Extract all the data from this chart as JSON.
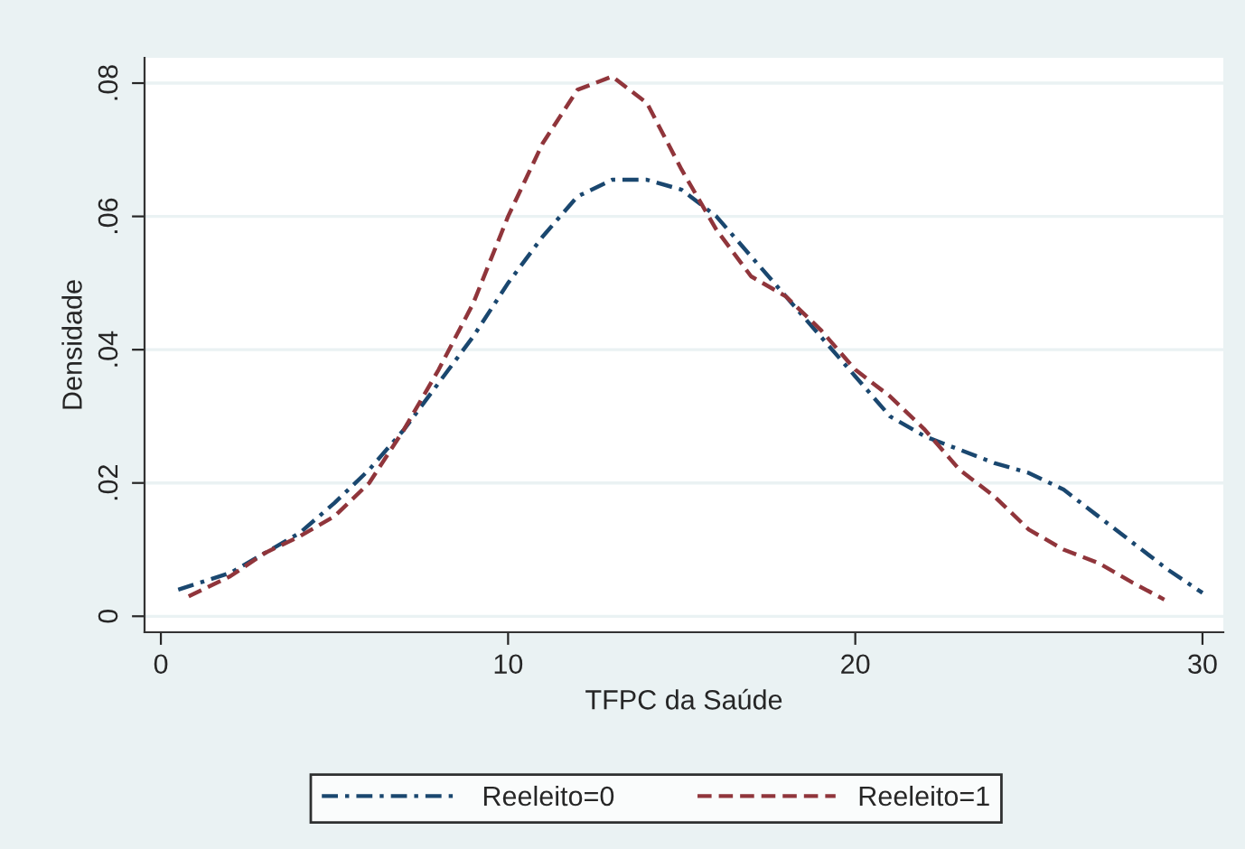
{
  "chart_data": {
    "type": "line",
    "xlabel": "TFPC da Saúde",
    "ylabel": "Densidade",
    "xlim": [
      -0.47,
      30.6
    ],
    "ylim": [
      -0.0024,
      0.0838
    ],
    "xticks": [
      0,
      10,
      20,
      30
    ],
    "yticks": [
      {
        "value": 0,
        "label": "0"
      },
      {
        "value": 0.02,
        "label": ".02"
      },
      {
        "value": 0.04,
        "label": ".04"
      },
      {
        "value": 0.06,
        "label": ".06"
      },
      {
        "value": 0.08,
        "label": ".08"
      }
    ],
    "grid": "y",
    "legend": "bottom",
    "series": [
      {
        "name": "Reeleito=0",
        "color": "#1a476f",
        "line_style": "dashdot",
        "x": [
          0.5,
          2,
          3,
          4,
          5,
          6,
          7,
          8,
          9,
          10,
          11,
          12,
          13,
          14,
          15,
          16,
          17,
          18,
          19,
          20,
          21,
          22,
          23,
          24,
          25,
          26,
          27,
          28,
          29,
          30
        ],
        "values": [
          0.004,
          0.0065,
          0.0095,
          0.0125,
          0.017,
          0.022,
          0.028,
          0.035,
          0.042,
          0.05,
          0.057,
          0.063,
          0.0655,
          0.0655,
          0.064,
          0.06,
          0.054,
          0.048,
          0.042,
          0.036,
          0.03,
          0.027,
          0.025,
          0.023,
          0.0215,
          0.019,
          0.015,
          0.011,
          0.007,
          0.0035
        ]
      },
      {
        "name": "Reeleito=1",
        "color": "#90353b",
        "line_style": "dashed",
        "x": [
          0.8,
          2,
          3,
          4,
          5,
          6,
          7,
          8,
          9,
          10,
          11,
          12,
          13,
          14,
          15,
          16,
          17,
          18,
          19,
          20,
          21,
          22,
          23,
          24,
          25,
          26,
          27,
          28,
          28.9
        ],
        "values": [
          0.003,
          0.006,
          0.0095,
          0.012,
          0.015,
          0.02,
          0.028,
          0.037,
          0.047,
          0.06,
          0.071,
          0.079,
          0.081,
          0.077,
          0.067,
          0.058,
          0.051,
          0.048,
          0.043,
          0.037,
          0.033,
          0.028,
          0.022,
          0.018,
          0.013,
          0.01,
          0.008,
          0.005,
          0.0025
        ]
      }
    ]
  }
}
